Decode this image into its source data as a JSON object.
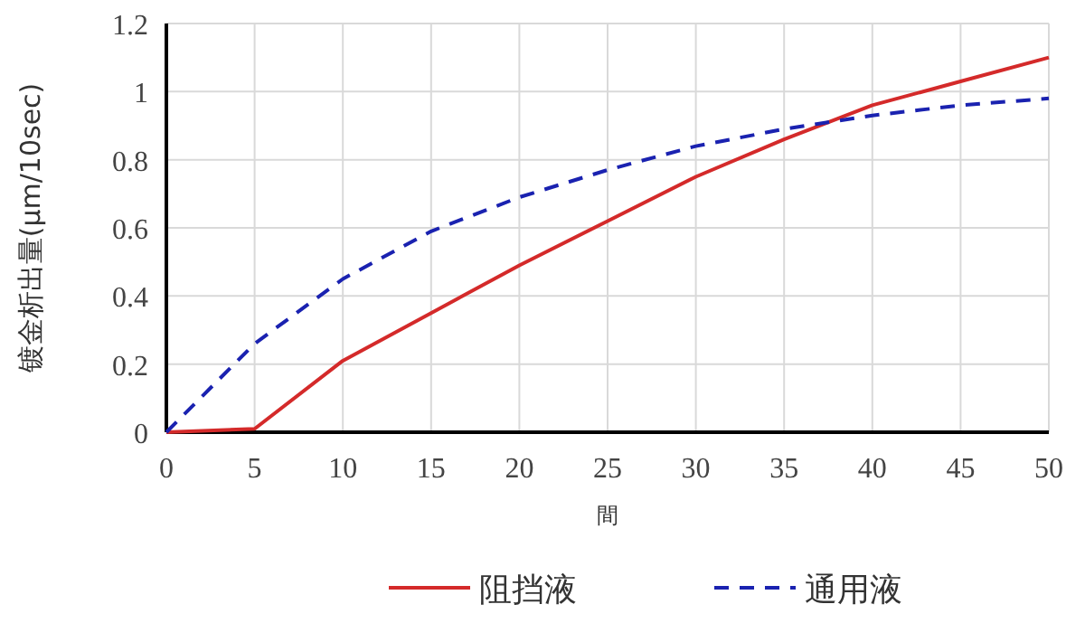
{
  "chart_data": {
    "type": "line",
    "xlabel": "間",
    "ylabel": "镀金析出量(μm/10sec)",
    "x": [
      0,
      5,
      10,
      15,
      20,
      25,
      30,
      35,
      40,
      45,
      50
    ],
    "series": [
      {
        "name": "阻挡液",
        "color": "#d42a2a",
        "line_style": "solid",
        "values": [
          0,
          0.01,
          0.21,
          0.35,
          0.49,
          0.62,
          0.75,
          0.86,
          0.96,
          1.03,
          1.1
        ]
      },
      {
        "name": "通用液",
        "color": "#1a22b0",
        "line_style": "dashed",
        "values": [
          0,
          0.26,
          0.45,
          0.59,
          0.69,
          0.77,
          0.84,
          0.89,
          0.93,
          0.96,
          0.98
        ]
      }
    ],
    "xlim": [
      0,
      50
    ],
    "xticks": [
      0,
      5,
      10,
      15,
      20,
      25,
      30,
      35,
      40,
      45,
      50
    ],
    "ylim": [
      0,
      1.2
    ],
    "yticks": [
      0,
      0.2,
      0.4,
      0.6,
      0.8,
      1,
      1.2
    ],
    "grid": true,
    "legend": "bottom",
    "marker": "none"
  }
}
